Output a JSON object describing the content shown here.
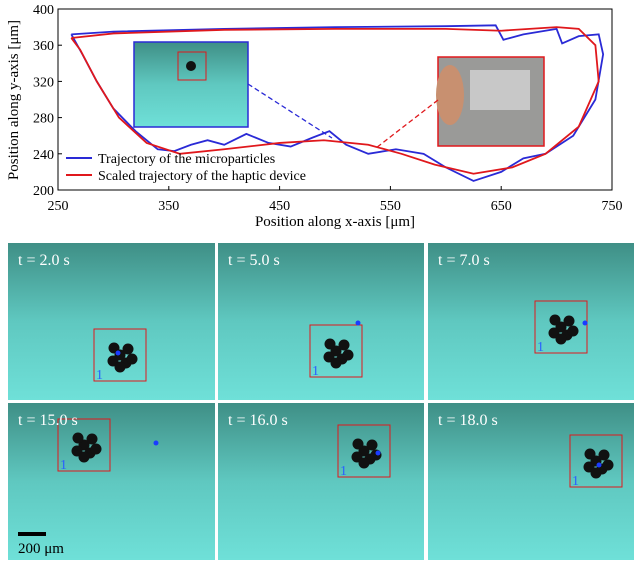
{
  "chart_data": {
    "type": "line",
    "xlabel": "Position along x-axis [μm]",
    "ylabel": "Position along y-axis [μm]",
    "xlim": [
      250,
      750
    ],
    "xticks": [
      250,
      350,
      450,
      550,
      650,
      750
    ],
    "ylim": [
      200,
      400
    ],
    "yticks": [
      200,
      240,
      280,
      320,
      360,
      400
    ],
    "legend": "lower left",
    "series": [
      {
        "name": "Trajectory of the microparticles",
        "color": "#2a2ad6",
        "x": [
          262,
          300,
          400,
          500,
          600,
          645,
          652,
          670,
          700,
          705,
          720,
          738,
          742,
          735,
          715,
          690,
          670,
          650,
          625,
          600,
          580,
          555,
          530,
          510,
          495,
          480,
          460,
          440,
          420,
          400,
          385,
          370,
          355,
          340,
          320,
          300,
          285,
          272,
          262
        ],
        "values": [
          372,
          375,
          378,
          380,
          381,
          382,
          366,
          372,
          378,
          362,
          370,
          372,
          350,
          300,
          260,
          240,
          235,
          220,
          210,
          225,
          240,
          245,
          240,
          250,
          265,
          258,
          248,
          252,
          262,
          250,
          255,
          250,
          243,
          245,
          265,
          290,
          320,
          350,
          372
        ]
      },
      {
        "name": "Scaled trajectory of the haptic device",
        "color": "#e0181c",
        "x": [
          262,
          300,
          400,
          500,
          600,
          650,
          700,
          720,
          735,
          738,
          720,
          690,
          660,
          625,
          590,
          560,
          530,
          490,
          450,
          400,
          360,
          330,
          305,
          285,
          270,
          262
        ],
        "values": [
          368,
          373,
          377,
          378,
          378,
          376,
          380,
          378,
          360,
          320,
          270,
          240,
          225,
          218,
          228,
          240,
          250,
          255,
          252,
          245,
          240,
          252,
          280,
          320,
          355,
          368
        ]
      }
    ]
  },
  "panels": [
    "t = 2.0 s",
    "t = 5.0 s",
    "t = 7.0 s",
    "t = 15.0 s",
    "t = 16.0 s",
    "t = 18.0 s"
  ],
  "panel_marker": "1",
  "scale_bar": "200 μm"
}
